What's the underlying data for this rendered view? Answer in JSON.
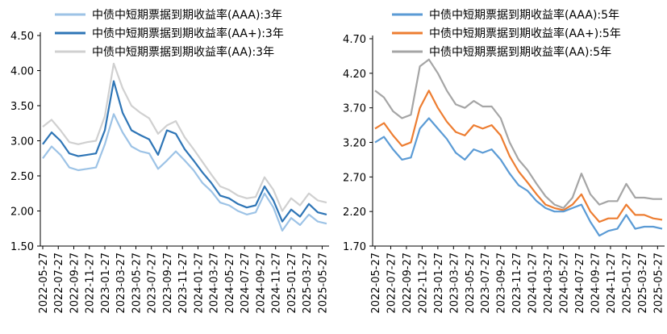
{
  "chart_data": [
    {
      "type": "line",
      "ylim": [
        1.5,
        4.5
      ],
      "yticks": [
        "4.50",
        "4.00",
        "3.50",
        "3.00",
        "2.50",
        "2.00",
        "1.50"
      ],
      "xticks": [
        "2022-05-27",
        "2022-07-27",
        "2022-09-27",
        "2022-11-27",
        "2023-01-27",
        "2023-03-27",
        "2023-05-27",
        "2023-07-27",
        "2023-09-27",
        "2023-11-27",
        "2024-01-27",
        "2024-03-27",
        "2024-05-27",
        "2024-07-27",
        "2024-09-27",
        "2024-11-27",
        "2025-01-27",
        "2025-03-27",
        "2025-05-27"
      ],
      "series": [
        {
          "name": "中债中短期票据到期收益率(AAA):3年",
          "color": "#9DC3E6",
          "values": [
            2.75,
            2.92,
            2.8,
            2.62,
            2.58,
            2.6,
            2.62,
            2.95,
            3.38,
            3.12,
            2.92,
            2.85,
            2.82,
            2.6,
            2.72,
            2.85,
            2.72,
            2.58,
            2.4,
            2.28,
            2.12,
            2.08,
            2.0,
            1.95,
            1.98,
            2.25,
            2.05,
            1.72,
            1.9,
            1.8,
            1.95,
            1.85,
            1.82
          ]
        },
        {
          "name": "中债中短期票据到期收益率(AA+):3年",
          "color": "#2E75B6",
          "values": [
            2.95,
            3.12,
            3.0,
            2.82,
            2.78,
            2.8,
            2.82,
            3.15,
            3.85,
            3.4,
            3.15,
            3.08,
            3.02,
            2.8,
            3.15,
            3.1,
            2.88,
            2.72,
            2.55,
            2.4,
            2.22,
            2.18,
            2.1,
            2.05,
            2.08,
            2.35,
            2.15,
            1.85,
            2.02,
            1.92,
            2.1,
            1.98,
            1.95
          ]
        },
        {
          "name": "中债中短期票据到期收益率(AA):3年",
          "color": "#D0D0D0",
          "values": [
            3.2,
            3.3,
            3.15,
            2.98,
            2.95,
            2.98,
            3.0,
            3.35,
            4.1,
            3.75,
            3.5,
            3.4,
            3.32,
            3.1,
            3.22,
            3.28,
            3.05,
            2.88,
            2.7,
            2.52,
            2.35,
            2.3,
            2.22,
            2.18,
            2.2,
            2.48,
            2.3,
            2.0,
            2.18,
            2.08,
            2.25,
            2.15,
            2.12
          ]
        }
      ]
    },
    {
      "type": "line",
      "ylim": [
        1.7,
        4.7
      ],
      "yticks": [
        "4.70",
        "4.20",
        "3.70",
        "3.20",
        "2.70",
        "2.20",
        "1.70"
      ],
      "xticks": [
        "2022-05-27",
        "2022-07-27",
        "2022-09-27",
        "2022-11-27",
        "2023-01-27",
        "2023-03-27",
        "2023-05-27",
        "2023-07-27",
        "2023-09-27",
        "2023-11-27",
        "2024-01-27",
        "2024-03-27",
        "2024-05-27",
        "2024-07-27",
        "2024-09-27",
        "2024-11-27",
        "2025-01-27",
        "2025-03-27",
        "2025-05-27"
      ],
      "series": [
        {
          "name": "中债中短期票据到期收益率(AAA):5年",
          "color": "#5B9BD5",
          "values": [
            3.2,
            3.28,
            3.1,
            2.95,
            2.98,
            3.4,
            3.55,
            3.4,
            3.25,
            3.05,
            2.95,
            3.1,
            3.05,
            3.1,
            2.95,
            2.75,
            2.58,
            2.5,
            2.35,
            2.25,
            2.2,
            2.2,
            2.25,
            2.3,
            2.05,
            1.85,
            1.92,
            1.95,
            2.15,
            1.95,
            1.98,
            1.98,
            1.95
          ]
        },
        {
          "name": "中债中短期票据到期收益率(AA+):5年",
          "color": "#ED7D31",
          "values": [
            3.4,
            3.48,
            3.3,
            3.15,
            3.2,
            3.7,
            3.95,
            3.7,
            3.5,
            3.35,
            3.3,
            3.45,
            3.4,
            3.45,
            3.3,
            3.0,
            2.78,
            2.62,
            2.45,
            2.3,
            2.25,
            2.22,
            2.3,
            2.45,
            2.2,
            2.05,
            2.1,
            2.1,
            2.3,
            2.15,
            2.15,
            2.1,
            2.08
          ]
        },
        {
          "name": "中债中短期票据到期收益率(AA):5年",
          "color": "#A5A5A5",
          "values": [
            3.95,
            3.85,
            3.65,
            3.55,
            3.6,
            4.3,
            4.4,
            4.2,
            3.95,
            3.75,
            3.7,
            3.8,
            3.72,
            3.72,
            3.55,
            3.2,
            2.95,
            2.8,
            2.6,
            2.42,
            2.3,
            2.25,
            2.4,
            2.75,
            2.45,
            2.3,
            2.35,
            2.35,
            2.6,
            2.4,
            2.4,
            2.38,
            2.38
          ]
        }
      ]
    }
  ]
}
